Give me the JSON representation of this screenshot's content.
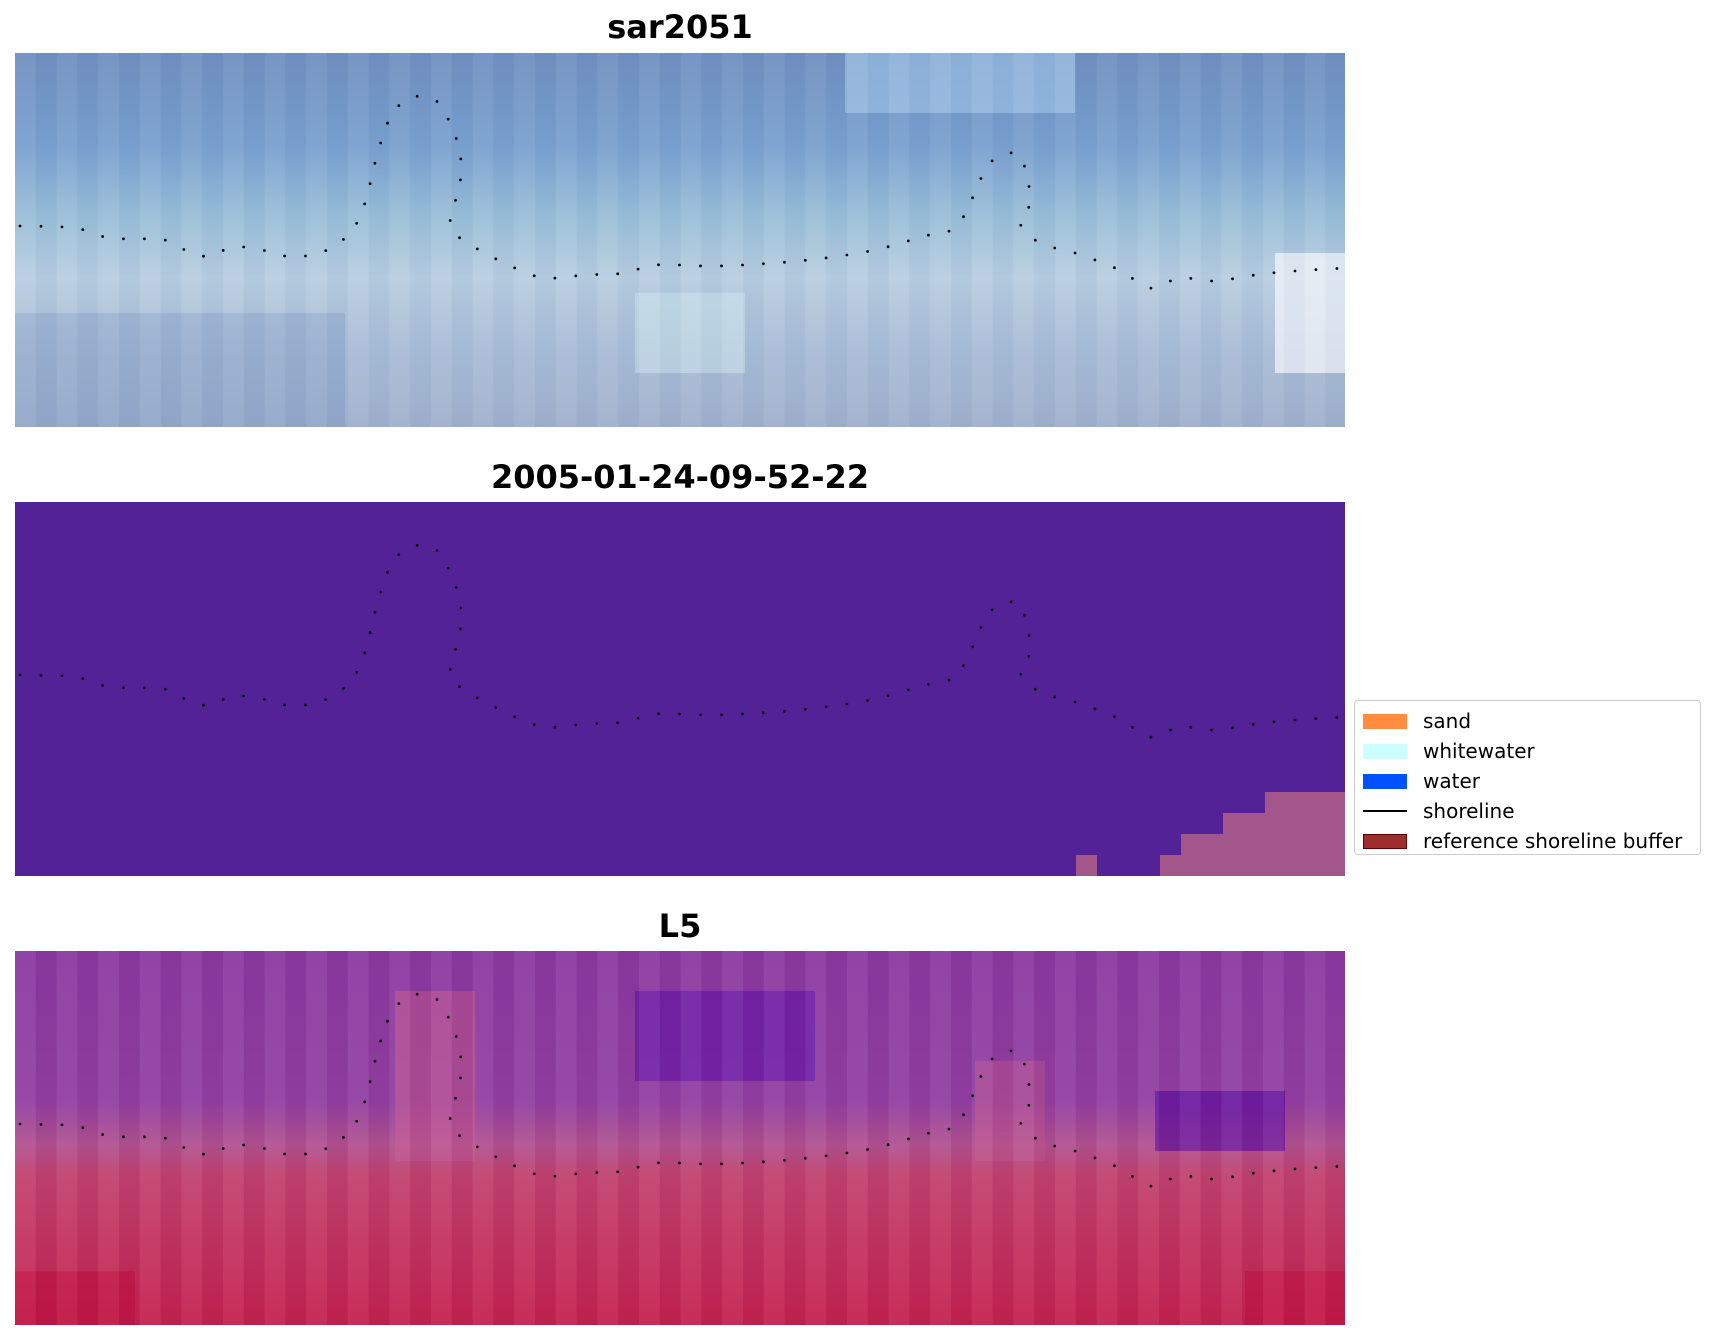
{
  "panels": [
    {
      "title": "sar2051",
      "kind": "rgb_composite"
    },
    {
      "title": "2005-01-24-09-52-22",
      "kind": "classification"
    },
    {
      "title": "L5",
      "kind": "false_color"
    }
  ],
  "legend": {
    "items": [
      {
        "label": "sand",
        "type": "patch",
        "color": "#ff8c40"
      },
      {
        "label": "whitewater",
        "type": "patch",
        "color": "#ccffff"
      },
      {
        "label": "water",
        "type": "patch",
        "color": "#0051ff"
      },
      {
        "label": "shoreline",
        "type": "line",
        "color": "#000000"
      },
      {
        "label": "reference shoreline buffer",
        "type": "patch",
        "color": "#9e2e2e",
        "edge": "#5a0000"
      }
    ]
  },
  "colors": {
    "classification_background": "#532297",
    "classification_buffer_overlap": "#a25689",
    "shoreline_dots": "#000000"
  }
}
